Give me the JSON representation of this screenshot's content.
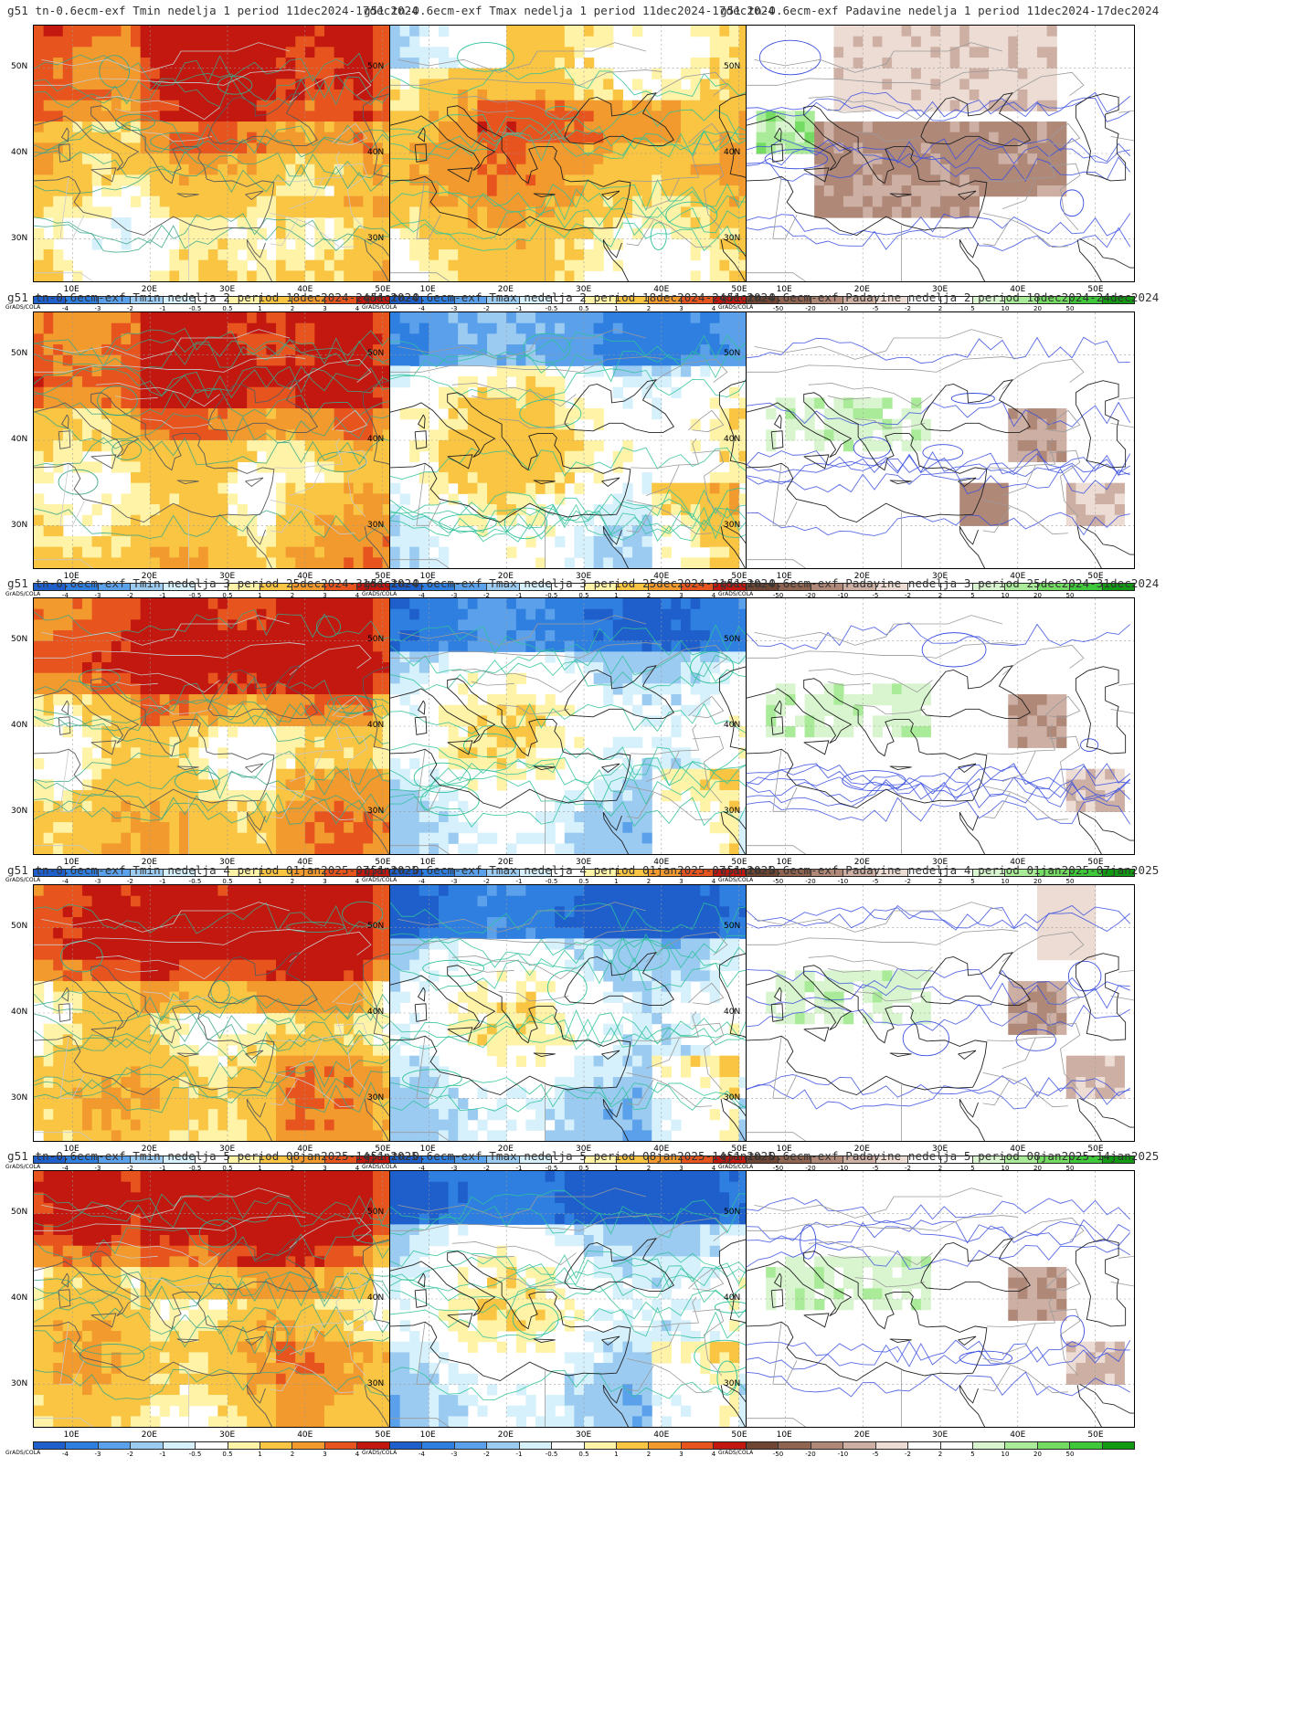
{
  "panels": [
    {
      "title": "g51 tn-0.6ecm-exf Tmin nedelja 1 period 11dec2024-17dec2024",
      "type": "tmin",
      "week": 1
    },
    {
      "title": "g51 tn-0.6ecm-exf Tmax nedelja 1 period 11dec2024-17dec2024",
      "type": "tmax",
      "week": 1
    },
    {
      "title": "g51 tn-0.6ecm-exf Padavine nedelja 1 period 11dec2024-17dec2024",
      "type": "precip",
      "week": 1
    },
    {
      "title": "g51 tn-0.6ecm-exf Tmin nedelja 2 period 18dec2024-24dec2024",
      "type": "tmin",
      "week": 2
    },
    {
      "title": "g51 tn-0.6ecm-exf Tmax nedelja 2 period 18dec2024-24dec2024",
      "type": "tmax",
      "week": 2
    },
    {
      "title": "g51 tn-0.6ecm-exf Padavine nedelja 2 period 18dec2024-24dec2024",
      "type": "precip",
      "week": 2
    },
    {
      "title": "g51 tn-0.6ecm-exf Tmin nedelja 3 period 25dec2024-31dec2024",
      "type": "tmin",
      "week": 3
    },
    {
      "title": "g51 tn-0.6ecm-exf Tmax nedelja 3 period 25dec2024-31dec2024",
      "type": "tmax",
      "week": 3
    },
    {
      "title": "g51 tn-0.6ecm-exf Padavine nedelja 3 period 25dec2024-31dec2024",
      "type": "precip",
      "week": 3
    },
    {
      "title": "g51 tn-0.6ecm-exf Tmin nedelja 4 period 01jan2025-07jan2025",
      "type": "tmin",
      "week": 4
    },
    {
      "title": "g51 tn-0.6ecm-exf Tmax nedelja 4 period 01jan2025-07jan2025",
      "type": "tmax",
      "week": 4
    },
    {
      "title": "g51 tn-0.6ecm-exf Padavine nedelja 4 period 01jan2025-07jan2025",
      "type": "precip",
      "week": 4
    },
    {
      "title": "g51 tn-0.6ecm-exf Tmin nedelja 5 period 08jan2025-14jan2025",
      "type": "tmin",
      "week": 5
    },
    {
      "title": "g51 tn-0.6ecm-exf Tmax nedelja 5 period 08jan2025-14jan2025",
      "type": "tmax",
      "week": 5
    },
    {
      "title": "g51 tn-0.6ecm-exf Padavine nedelja 5 period 08jan2025-14jan2025",
      "type": "precip",
      "week": 5
    }
  ],
  "lat_labels": [
    "50N",
    "40N",
    "30N"
  ],
  "lon_labels": [
    "10E",
    "20E",
    "30E",
    "40E",
    "50E"
  ],
  "credit": "GrADS/COLA",
  "temp_ticks": [
    "-4",
    "-3",
    "-2",
    "-1",
    "-0.5",
    "0.5",
    "1",
    "2",
    "3",
    "4"
  ],
  "temp_colors": [
    "#1e5fcc",
    "#2f7fe0",
    "#5aa0ea",
    "#9ccbf2",
    "#d6f1fb",
    "#ffffff",
    "#fff3a8",
    "#f9c542",
    "#f29a2e",
    "#e8541e",
    "#c2180f",
    "#8c0a0a"
  ],
  "precip_ticks": [
    "-50",
    "-20",
    "-10",
    "-5",
    "-2",
    "2",
    "5",
    "10",
    "20",
    "50"
  ],
  "precip_colors": [
    "#6e4633",
    "#8f6552",
    "#b08878",
    "#cdafa4",
    "#ecdcd4",
    "#ffffff",
    "#ffffff",
    "#d9f5cf",
    "#a9eb98",
    "#74dc62",
    "#3fc83a",
    "#129a12"
  ]
}
